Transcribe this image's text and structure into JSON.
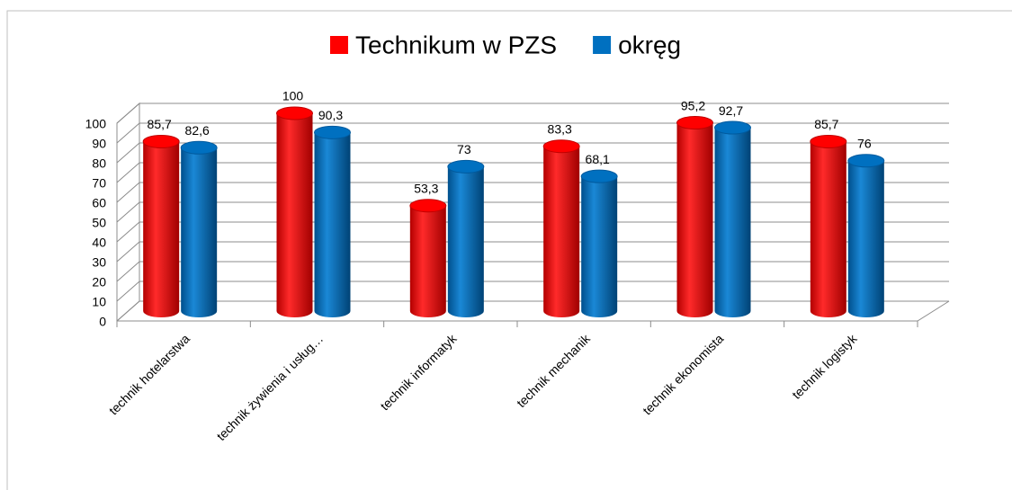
{
  "chart_data": {
    "type": "bar3d",
    "categories": [
      "technik hotelarstwa",
      "technik żywienia i usług…",
      "technik informatyk",
      "technik mechanik",
      "technik ekonomista",
      "technik logistyk"
    ],
    "series": [
      {
        "name": "Technikum w PZS",
        "color": "#ff0000",
        "values": [
          85.7,
          100,
          53.3,
          83.3,
          95.2,
          85.7
        ],
        "value_labels": [
          "85,7",
          "100",
          "53,3",
          "83,3",
          "95,2",
          "85,7"
        ]
      },
      {
        "name": "okręg",
        "color": "#0070c0",
        "values": [
          82.6,
          90.3,
          73,
          68.1,
          92.7,
          76
        ],
        "value_labels": [
          "82,6",
          "90,3",
          "73",
          "68,1",
          "92,7",
          "76"
        ]
      }
    ],
    "ylim": [
      0,
      100
    ],
    "yticks": [
      0,
      10,
      20,
      30,
      40,
      50,
      60,
      70,
      80,
      90,
      100
    ],
    "grid": true,
    "legend": "top"
  }
}
